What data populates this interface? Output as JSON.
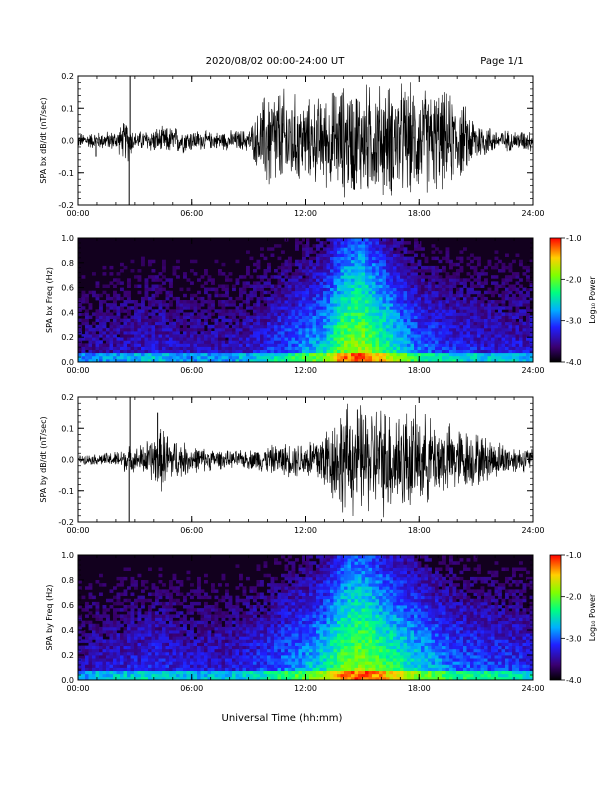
{
  "header": {
    "title": "2020/08/02  00:00-24:00 UT",
    "page": "Page 1/1"
  },
  "xlabel": "Universal Time (hh:mm)",
  "colorbar": {
    "label": "Log₁₀ Power",
    "ticks": [
      "-1.0",
      "-2.0",
      "-3.0",
      "-4.0"
    ]
  },
  "chart_data": [
    {
      "type": "line",
      "panel": "bx-waveform",
      "ylabel": "SPA bx dB/dt (nT/sec)",
      "ylim": [
        -0.2,
        0.2
      ],
      "xlim": [
        0,
        24
      ],
      "y_ticks": [
        "0.2",
        "0.1",
        "0.0",
        "-0.1",
        "-0.2"
      ],
      "x_ticks": [
        "00:00",
        "06:00",
        "12:00",
        "18:00",
        "24:00"
      ],
      "envelope": {
        "x_hours": [
          0,
          1,
          2,
          2.6,
          3,
          4,
          5,
          6,
          7,
          8,
          9,
          9.5,
          10,
          11,
          12,
          13,
          14,
          15,
          16,
          17,
          18,
          19,
          20,
          21,
          22,
          23,
          24
        ],
        "amplitude": [
          0.025,
          0.03,
          0.035,
          0.08,
          0.03,
          0.045,
          0.05,
          0.04,
          0.03,
          0.035,
          0.04,
          0.1,
          0.2,
          0.18,
          0.14,
          0.16,
          0.2,
          0.2,
          0.2,
          0.2,
          0.19,
          0.18,
          0.15,
          0.08,
          0.04,
          0.035,
          0.04
        ]
      },
      "spikes": [
        {
          "x": 2.7,
          "y": -0.2
        },
        {
          "x": 2.75,
          "y": 0.2
        },
        {
          "x": 0.95,
          "y": -0.05
        }
      ]
    },
    {
      "type": "heatmap",
      "panel": "bx-spectrogram",
      "ylabel": "SPA bx Freq (Hz)",
      "ylim": [
        0.0,
        1.0
      ],
      "xlim": [
        0,
        24
      ],
      "y_ticks": [
        "1.0",
        "0.8",
        "0.6",
        "0.4",
        "0.2",
        "0.0"
      ],
      "x_ticks": [
        "00:00",
        "06:00",
        "12:00",
        "18:00",
        "24:00"
      ],
      "clim": [
        -4.0,
        -1.0
      ],
      "intensity": {
        "x_hours": [
          0,
          2,
          4,
          6,
          8,
          10,
          12,
          13,
          14,
          15,
          16,
          17,
          18,
          20,
          22,
          24
        ],
        "level": [
          0.2,
          0.25,
          0.3,
          0.25,
          0.25,
          0.35,
          0.5,
          0.6,
          0.85,
          0.9,
          0.75,
          0.6,
          0.45,
          0.35,
          0.3,
          0.3
        ]
      }
    },
    {
      "type": "line",
      "panel": "by-waveform",
      "ylabel": "SPA by dB/dt (nT/sec)",
      "ylim": [
        -0.2,
        0.2
      ],
      "xlim": [
        0,
        24
      ],
      "y_ticks": [
        "0.2",
        "0.1",
        "0.0",
        "-0.1",
        "-0.2"
      ],
      "x_ticks": [
        "00:00",
        "06:00",
        "12:00",
        "18:00",
        "24:00"
      ],
      "envelope": {
        "x_hours": [
          0,
          1,
          2,
          2.6,
          3,
          4,
          4.5,
          5,
          6,
          7,
          8,
          9,
          10,
          11,
          12,
          13,
          14,
          15,
          16,
          17,
          18,
          19,
          20,
          21,
          22,
          23,
          24
        ],
        "amplitude": [
          0.015,
          0.02,
          0.03,
          0.05,
          0.04,
          0.09,
          0.12,
          0.08,
          0.05,
          0.04,
          0.03,
          0.035,
          0.05,
          0.06,
          0.07,
          0.12,
          0.2,
          0.2,
          0.2,
          0.2,
          0.17,
          0.14,
          0.12,
          0.1,
          0.07,
          0.05,
          0.04
        ]
      },
      "spikes": [
        {
          "x": 2.7,
          "y": -0.2
        },
        {
          "x": 2.75,
          "y": 0.2
        },
        {
          "x": 4.2,
          "y": 0.15
        }
      ]
    },
    {
      "type": "heatmap",
      "panel": "by-spectrogram",
      "ylabel": "SPA by Freq (Hz)",
      "ylim": [
        0.0,
        1.0
      ],
      "xlim": [
        0,
        24
      ],
      "y_ticks": [
        "1.0",
        "0.8",
        "0.6",
        "0.4",
        "0.2",
        "0.0"
      ],
      "x_ticks": [
        "00:00",
        "06:00",
        "12:00",
        "18:00",
        "24:00"
      ],
      "clim": [
        -4.0,
        -1.0
      ],
      "intensity": {
        "x_hours": [
          0,
          2,
          4,
          6,
          8,
          10,
          12,
          13,
          14,
          15,
          16,
          17,
          18,
          20,
          22,
          24
        ],
        "level": [
          0.25,
          0.3,
          0.35,
          0.3,
          0.3,
          0.4,
          0.55,
          0.65,
          0.85,
          0.9,
          0.8,
          0.7,
          0.6,
          0.45,
          0.4,
          0.35
        ]
      }
    }
  ]
}
